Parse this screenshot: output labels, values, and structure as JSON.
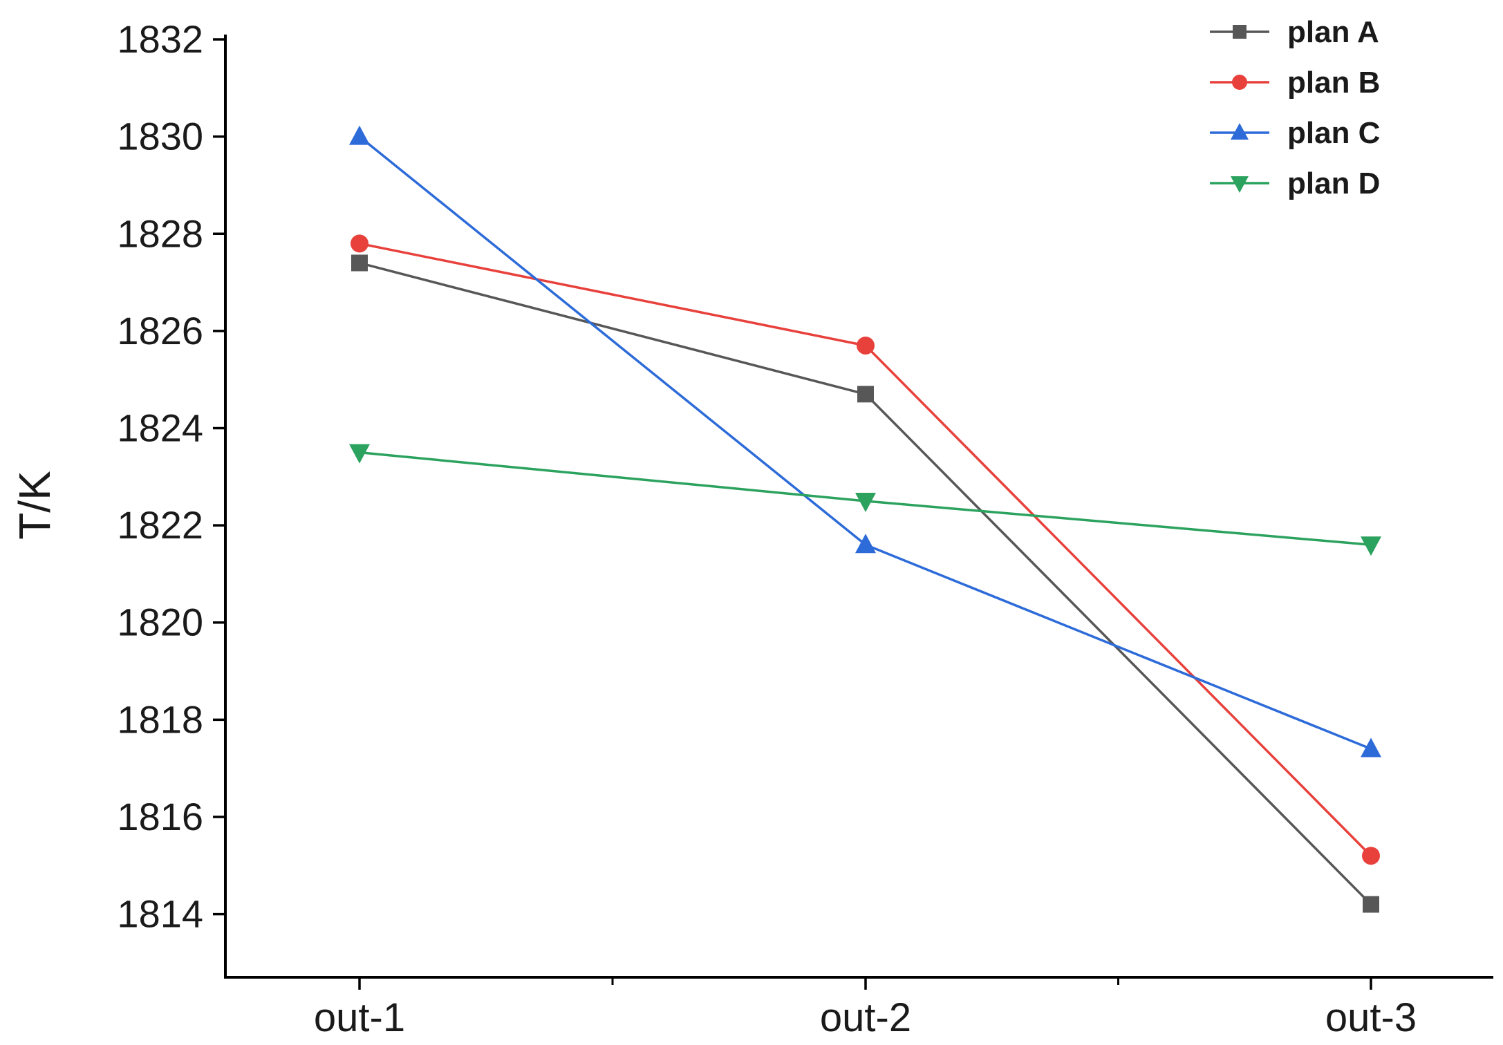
{
  "chart_data": {
    "type": "line",
    "title": "",
    "xlabel": "",
    "ylabel": "T/K",
    "categories": [
      "out-1",
      "out-2",
      "out-3"
    ],
    "series": [
      {
        "name": "plan A",
        "color": "#575757",
        "marker": "square",
        "values": [
          1827.4,
          1824.7,
          1814.2
        ]
      },
      {
        "name": "plan B",
        "color": "#e8413c",
        "marker": "circle",
        "values": [
          1827.8,
          1825.7,
          1815.2
        ]
      },
      {
        "name": "plan C",
        "color": "#2d6bd9",
        "marker": "triangle-up",
        "values": [
          1830.0,
          1821.6,
          1817.4
        ]
      },
      {
        "name": "plan D",
        "color": "#2ca25f",
        "marker": "triangle-down",
        "values": [
          1823.5,
          1822.5,
          1821.6
        ]
      }
    ],
    "yticks": [
      1814,
      1816,
      1818,
      1820,
      1822,
      1824,
      1826,
      1828,
      1830,
      1832
    ],
    "ylim": [
      1812.7,
      1832.1
    ],
    "legend_position": "top-right",
    "grid": false,
    "axis_color": "#000000"
  }
}
